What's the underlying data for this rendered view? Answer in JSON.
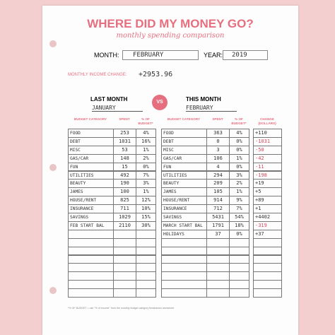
{
  "header": {
    "title": "WHERE DID MY MONEY GO?",
    "subtitle": "monthly spending comparison",
    "month_label": "MONTH:",
    "month": "FEBRUARY",
    "year_label": "YEAR:",
    "year": "2019",
    "income_label": "MONTHLY INCOME CHANGE:",
    "income_change": "+2953.96"
  },
  "last_month": {
    "heading": "LAST MONTH",
    "month": "JANUARY",
    "columns": [
      "BUDGET CATEGORY",
      "SPENT",
      "% OF BUDGET*"
    ],
    "rows": [
      [
        "FOOD",
        "253",
        "4%"
      ],
      [
        "DEBT",
        "1031",
        "16%"
      ],
      [
        "MISC",
        "53",
        "1%"
      ],
      [
        "GAS/CAR",
        "148",
        "2%"
      ],
      [
        "FUN",
        "15",
        "0%"
      ],
      [
        "UTILITIES",
        "492",
        "7%"
      ],
      [
        "BEAUTY",
        "190",
        "3%"
      ],
      [
        "JAMES",
        "100",
        "1%"
      ],
      [
        "HOUSE/RENT",
        "825",
        "12%"
      ],
      [
        "INSURANCE",
        "711",
        "10%"
      ],
      [
        "SAVINGS",
        "1029",
        "15%"
      ],
      [
        "FEB START BAL",
        "2110",
        "30%"
      ]
    ]
  },
  "vs": "VS",
  "this_month": {
    "heading": "THIS MONTH",
    "month": "FEBRUARY",
    "columns": [
      "BUDGET CATEGORY",
      "SPENT",
      "% OF BUDGET*"
    ],
    "rows": [
      [
        "FOOD",
        "363",
        "4%"
      ],
      [
        "DEBT",
        "0",
        "0%"
      ],
      [
        "MISC",
        "3",
        "0%"
      ],
      [
        "GAS/CAR",
        "106",
        "1%"
      ],
      [
        "FUN",
        "4",
        "0%"
      ],
      [
        "UTILITIES",
        "294",
        "3%"
      ],
      [
        "BEAUTY",
        "209",
        "2%"
      ],
      [
        "JAMES",
        "105",
        "1%"
      ],
      [
        "HOUSE/RENT",
        "914",
        "9%"
      ],
      [
        "INSURANCE",
        "712",
        "7%"
      ],
      [
        "SAVINGS",
        "5431",
        "54%"
      ],
      [
        "MARCH START BAL",
        "1791",
        "18%"
      ],
      [
        "HOLIDAYS",
        "37",
        "0%"
      ]
    ]
  },
  "change": {
    "column": "CHANGE (DOLLARS)",
    "values": [
      "+110",
      "-1031",
      "-50",
      "-42",
      "-11",
      "-198",
      "+19",
      "+5",
      "+89",
      "+1",
      "+4402",
      "-319",
      "+37"
    ]
  },
  "footnote": "*% OF BUDGET = use \"% of income\" from the monthly budget category breakdown worksheet"
}
